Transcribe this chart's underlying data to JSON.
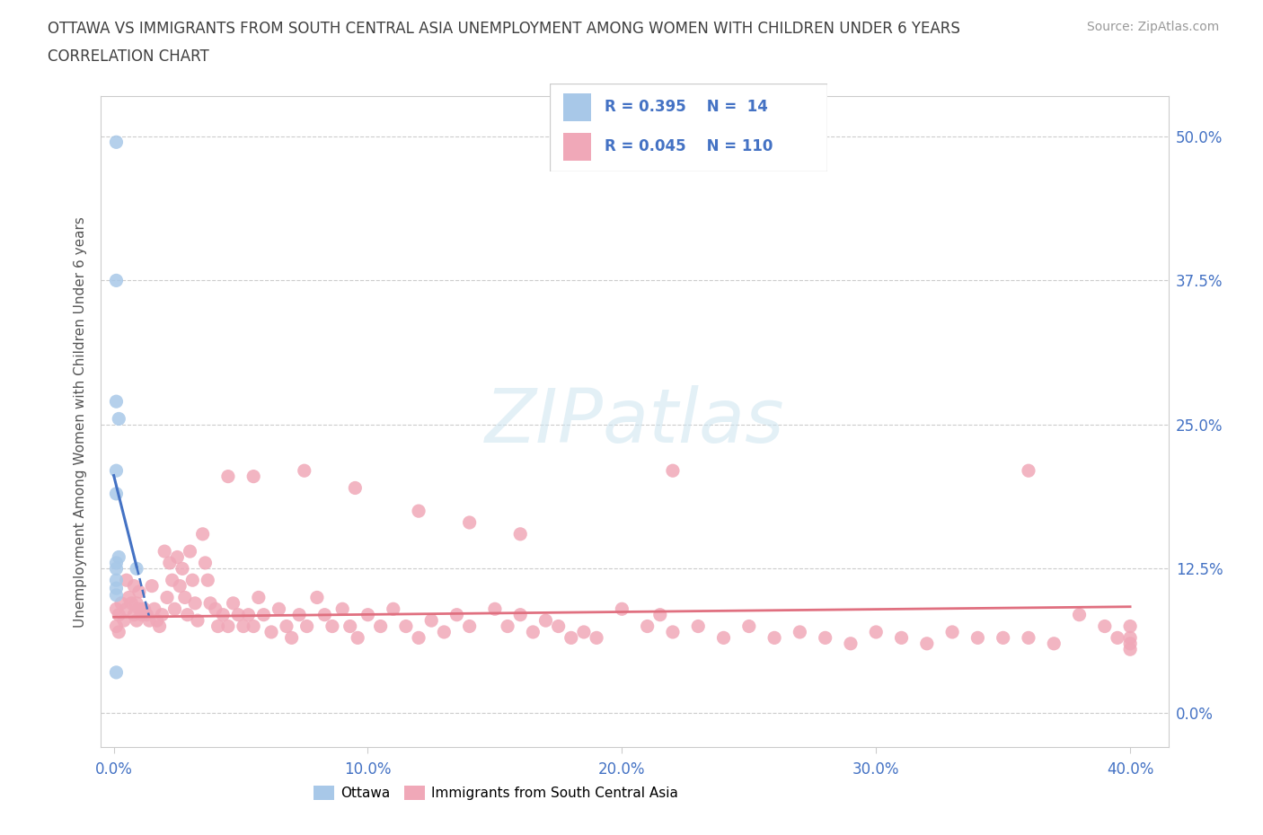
{
  "title_line1": "OTTAWA VS IMMIGRANTS FROM SOUTH CENTRAL ASIA UNEMPLOYMENT AMONG WOMEN WITH CHILDREN UNDER 6 YEARS",
  "title_line2": "CORRELATION CHART",
  "source": "Source: ZipAtlas.com",
  "xlim": [
    -0.005,
    0.415
  ],
  "ylim": [
    -0.03,
    0.535
  ],
  "ylabel": "Unemployment Among Women with Children Under 6 years",
  "ottawa_color": "#a8c8e8",
  "immigrants_color": "#f0a8b8",
  "ottawa_line_color": "#4472c4",
  "immigrants_line_color": "#e07080",
  "ottawa_R": 0.395,
  "ottawa_N": 14,
  "immigrants_R": 0.045,
  "immigrants_N": 110,
  "watermark": "ZIPatlas",
  "title_color": "#404040",
  "axis_label_color": "#4472c4",
  "ottawa_x": [
    0.001,
    0.001,
    0.001,
    0.002,
    0.001,
    0.001,
    0.002,
    0.001,
    0.001,
    0.001,
    0.001,
    0.001,
    0.009,
    0.001
  ],
  "ottawa_y": [
    0.495,
    0.375,
    0.27,
    0.255,
    0.21,
    0.19,
    0.135,
    0.13,
    0.125,
    0.115,
    0.108,
    0.102,
    0.125,
    0.035
  ],
  "imm_x": [
    0.001,
    0.001,
    0.002,
    0.002,
    0.003,
    0.004,
    0.005,
    0.005,
    0.006,
    0.007,
    0.008,
    0.008,
    0.009,
    0.009,
    0.01,
    0.01,
    0.011,
    0.012,
    0.013,
    0.014,
    0.015,
    0.016,
    0.017,
    0.018,
    0.019,
    0.02,
    0.021,
    0.022,
    0.023,
    0.024,
    0.025,
    0.026,
    0.027,
    0.028,
    0.029,
    0.03,
    0.031,
    0.032,
    0.033,
    0.035,
    0.036,
    0.037,
    0.038,
    0.04,
    0.041,
    0.043,
    0.045,
    0.047,
    0.049,
    0.051,
    0.053,
    0.055,
    0.057,
    0.059,
    0.062,
    0.065,
    0.068,
    0.07,
    0.073,
    0.076,
    0.08,
    0.083,
    0.086,
    0.09,
    0.093,
    0.096,
    0.1,
    0.105,
    0.11,
    0.115,
    0.12,
    0.125,
    0.13,
    0.135,
    0.14,
    0.15,
    0.155,
    0.16,
    0.165,
    0.17,
    0.175,
    0.18,
    0.185,
    0.19,
    0.2,
    0.21,
    0.215,
    0.22,
    0.23,
    0.24,
    0.25,
    0.26,
    0.27,
    0.28,
    0.29,
    0.3,
    0.31,
    0.32,
    0.33,
    0.34,
    0.35,
    0.36,
    0.37,
    0.38,
    0.39,
    0.395,
    0.4,
    0.4,
    0.4,
    0.4
  ],
  "imm_y": [
    0.09,
    0.075,
    0.085,
    0.07,
    0.095,
    0.08,
    0.115,
    0.09,
    0.1,
    0.095,
    0.11,
    0.085,
    0.095,
    0.08,
    0.105,
    0.09,
    0.085,
    0.09,
    0.085,
    0.08,
    0.11,
    0.09,
    0.08,
    0.075,
    0.085,
    0.14,
    0.1,
    0.13,
    0.115,
    0.09,
    0.135,
    0.11,
    0.125,
    0.1,
    0.085,
    0.14,
    0.115,
    0.095,
    0.08,
    0.155,
    0.13,
    0.115,
    0.095,
    0.09,
    0.075,
    0.085,
    0.075,
    0.095,
    0.085,
    0.075,
    0.085,
    0.075,
    0.1,
    0.085,
    0.07,
    0.09,
    0.075,
    0.065,
    0.085,
    0.075,
    0.1,
    0.085,
    0.075,
    0.09,
    0.075,
    0.065,
    0.085,
    0.075,
    0.09,
    0.075,
    0.065,
    0.08,
    0.07,
    0.085,
    0.075,
    0.09,
    0.075,
    0.085,
    0.07,
    0.08,
    0.075,
    0.065,
    0.07,
    0.065,
    0.09,
    0.075,
    0.085,
    0.07,
    0.075,
    0.065,
    0.075,
    0.065,
    0.07,
    0.065,
    0.06,
    0.07,
    0.065,
    0.06,
    0.07,
    0.065,
    0.065,
    0.065,
    0.06,
    0.085,
    0.075,
    0.065,
    0.075,
    0.065,
    0.06,
    0.055
  ],
  "imm_outlier_x": [
    0.045,
    0.055,
    0.075,
    0.095,
    0.12,
    0.14,
    0.16,
    0.22,
    0.36
  ],
  "imm_outlier_y": [
    0.205,
    0.205,
    0.21,
    0.195,
    0.175,
    0.165,
    0.155,
    0.21,
    0.21
  ],
  "xtick_vals": [
    0.0,
    0.1,
    0.2,
    0.3,
    0.4
  ],
  "xtick_labels": [
    "0.0%",
    "10.0%",
    "20.0%",
    "30.0%",
    "40.0%"
  ],
  "ytick_vals": [
    0.0,
    0.125,
    0.25,
    0.375,
    0.5
  ],
  "ytick_labels": [
    "0.0%",
    "12.5%",
    "25.0%",
    "37.5%",
    "50.0%"
  ]
}
